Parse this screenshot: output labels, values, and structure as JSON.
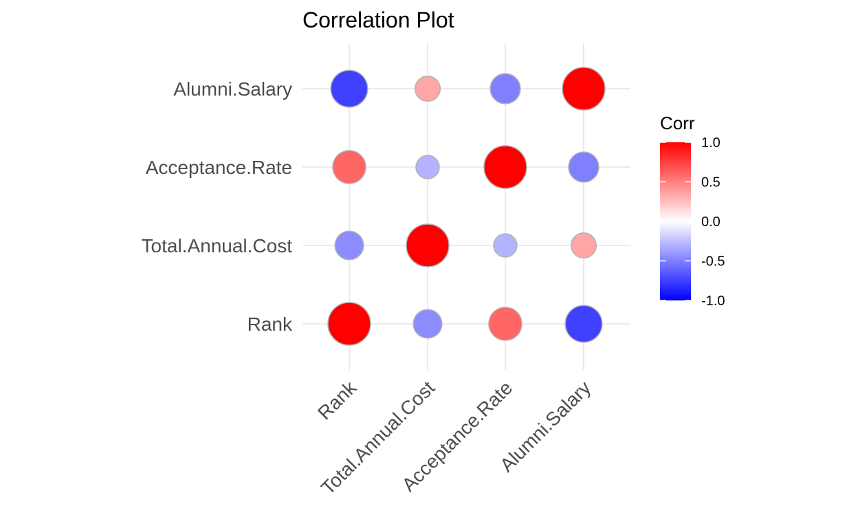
{
  "chart_data": {
    "type": "scatter",
    "title": "Correlation Plot",
    "xlabel": "",
    "ylabel": "",
    "x_categories": [
      "Rank",
      "Total.Annual.Cost",
      "Acceptance.Rate",
      "Alumni.Salary"
    ],
    "y_categories": [
      "Rank",
      "Total.Annual.Cost",
      "Acceptance.Rate",
      "Alumni.Salary"
    ],
    "matrix": [
      [
        1.0,
        -0.45,
        0.6,
        -0.75
      ],
      [
        -0.45,
        1.0,
        -0.3,
        0.35
      ],
      [
        0.6,
        -0.3,
        1.0,
        -0.5
      ],
      [
        -0.75,
        0.35,
        -0.5,
        1.0
      ]
    ],
    "grid": true,
    "legend": {
      "title": "Corr",
      "placement": "right",
      "range": [
        -1.0,
        1.0
      ],
      "ticks": [
        "1.0",
        "0.5",
        "0.0",
        "-0.5",
        "-1.0"
      ],
      "tick_values": [
        1.0,
        0.5,
        0.0,
        -0.5,
        -1.0
      ]
    },
    "colors": {
      "low": "#0000ff",
      "mid": "#ffffff",
      "high": "#ff0000",
      "grid": "#ebebeb",
      "point_border": "#b3b3b3"
    }
  }
}
